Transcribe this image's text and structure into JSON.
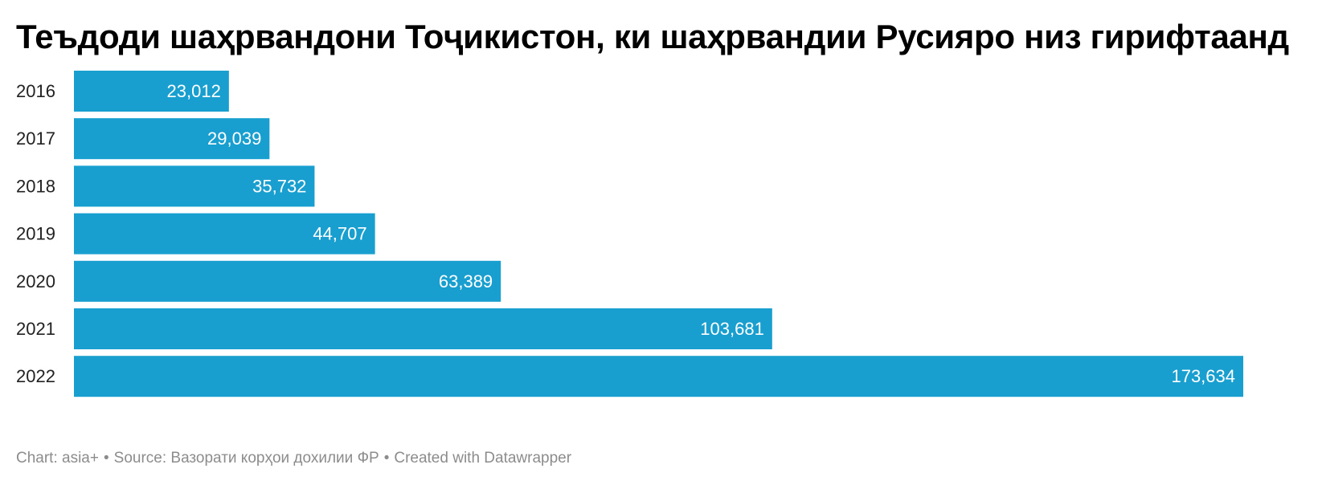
{
  "chart_data": {
    "type": "bar",
    "orientation": "horizontal",
    "title": "Теъдоди шаҳрвандони Тоҷикистон, ки шаҳрвандии Русияро низ гирифтаанд",
    "categories": [
      "2016",
      "2017",
      "2018",
      "2019",
      "2020",
      "2021",
      "2022"
    ],
    "values": [
      23012,
      29039,
      35732,
      44707,
      63389,
      103681,
      173634
    ],
    "value_labels": [
      "23,012",
      "29,039",
      "35,732",
      "44,707",
      "63,389",
      "103,681",
      "173,634"
    ],
    "xlim": [
      0,
      173634
    ],
    "grid": false,
    "legend": "none",
    "colors": {
      "bar": "#199fcf",
      "value_text": "#ffffff"
    }
  },
  "footer": {
    "chart_credit": "Chart: asia+",
    "source": "Source: Вазорати корҳои дохилии ФР",
    "created_with": "Created with Datawrapper",
    "separator": "•"
  }
}
